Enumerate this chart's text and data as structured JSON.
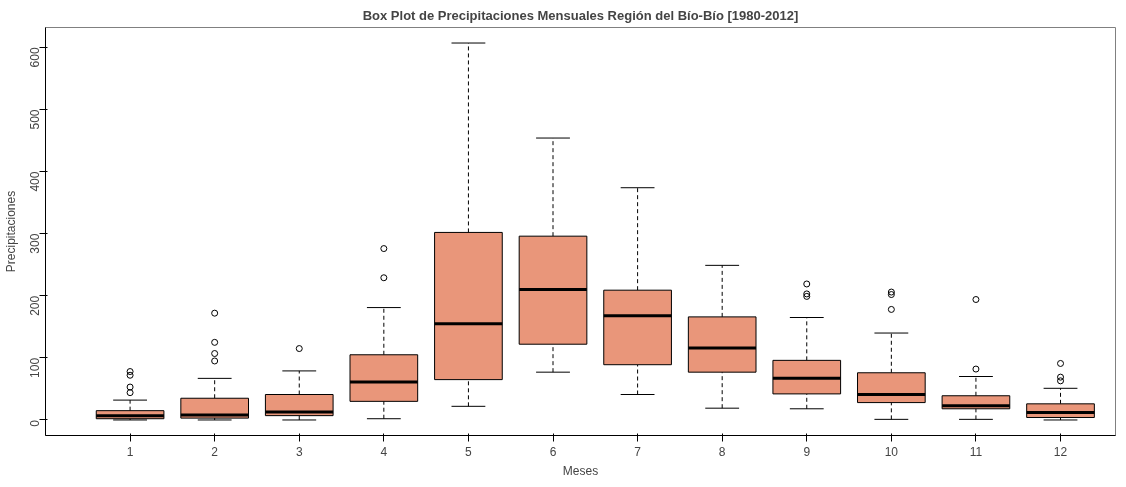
{
  "chart_data": {
    "type": "box",
    "title": "Box Plot de Precipitaciones Mensuales Región del Bío-Bío [1980-2012]",
    "xlabel": "Meses",
    "ylabel": "Precipitaciones",
    "categories": [
      "1",
      "2",
      "3",
      "4",
      "5",
      "6",
      "7",
      "8",
      "9",
      "10",
      "11",
      "12"
    ],
    "color": "#e9967a",
    "ylim": [
      -25,
      632
    ],
    "yticks": [
      0,
      100,
      200,
      300,
      400,
      500,
      600
    ],
    "grid": false,
    "boxes": [
      {
        "low": 0,
        "q1": 2,
        "median": 7,
        "q3": 15,
        "high": 32,
        "outliers": [
          44,
          53,
          72,
          78
        ]
      },
      {
        "low": 0,
        "q1": 3,
        "median": 8,
        "q3": 35,
        "high": 67,
        "outliers": [
          95,
          107,
          125,
          172
        ]
      },
      {
        "low": 0,
        "q1": 7,
        "median": 13,
        "q3": 41,
        "high": 79,
        "outliers": [
          115
        ]
      },
      {
        "low": 2,
        "q1": 30,
        "median": 61,
        "q3": 105,
        "high": 181,
        "outliers": [
          229,
          276
        ]
      },
      {
        "low": 22,
        "q1": 65,
        "median": 155,
        "q3": 302,
        "high": 607
      },
      {
        "low": 77,
        "q1": 122,
        "median": 210,
        "q3": 296,
        "high": 454
      },
      {
        "low": 41,
        "q1": 89,
        "median": 168,
        "q3": 209,
        "high": 374
      },
      {
        "low": 19,
        "q1": 77,
        "median": 116,
        "q3": 166,
        "high": 249
      },
      {
        "low": 18,
        "q1": 42,
        "median": 67,
        "q3": 96,
        "high": 165,
        "outliers": [
          199,
          203,
          219
        ]
      },
      {
        "low": 1,
        "q1": 28,
        "median": 41,
        "q3": 76,
        "high": 140,
        "outliers": [
          178,
          202,
          206
        ]
      },
      {
        "low": 1,
        "q1": 18,
        "median": 23,
        "q3": 39,
        "high": 70,
        "outliers": [
          82,
          194
        ]
      },
      {
        "low": 0,
        "q1": 4,
        "median": 12,
        "q3": 26,
        "high": 51,
        "outliers": [
          63,
          69,
          91
        ]
      }
    ]
  }
}
